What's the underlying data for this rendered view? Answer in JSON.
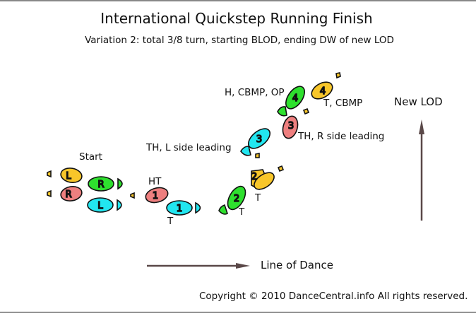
{
  "title": "International Quickstep Running Finish",
  "subtitle": "Variation 2: total 3/8 turn, starting BLOD, ending DW of new LOD",
  "copyright": "Copyright © 2010 DanceCentral.info All rights reserved.",
  "labels": {
    "start": "Start",
    "ht": "HT",
    "t1": "T",
    "t2": "T",
    "t3": "T",
    "th_l_side": "TH, L side leading",
    "th_r_side": "TH, R side leading",
    "h_cbmp_op": "H, CBMP, OP",
    "t_cbmp": "T, CBMP",
    "new_lod": "New LOD",
    "line_of_dance": "Line of Dance"
  },
  "steps": {
    "start_l_gold": "L",
    "start_r_pink": "R",
    "start_r_green": "R",
    "start_l_cyan": "L",
    "s1_pink": "1",
    "s1_cyan": "1",
    "s2_green": "2",
    "s2_gold": "2",
    "s3_cyan": "3",
    "s3_pink": "3",
    "s4_green": "4",
    "s4_gold": "4"
  },
  "colors": {
    "green": "#2ee02e",
    "cyan": "#22e6f0",
    "pink": "#ee7f7f",
    "gold": "#f8c62a",
    "arrow": "#5a4848"
  }
}
